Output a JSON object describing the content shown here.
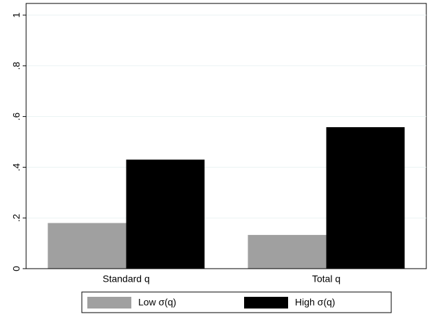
{
  "chart_data": {
    "type": "bar",
    "categories": [
      "Standard q",
      "Total q"
    ],
    "series": [
      {
        "name": "Low σ(q)",
        "color": "#a0a0a0",
        "values": [
          0.18,
          0.133
        ]
      },
      {
        "name": "High σ(q)",
        "color": "#000000",
        "values": [
          0.43,
          0.558
        ]
      }
    ],
    "ylim": [
      0,
      1
    ],
    "yticks": [
      0,
      {
        "value": 0.2,
        "label": ".2"
      },
      {
        "value": 0.4,
        "label": ".4"
      },
      {
        "value": 0.6,
        "label": ".6"
      },
      {
        "value": 0.8,
        "label": ".8"
      },
      1
    ],
    "grid": true,
    "legend": "bottom"
  }
}
